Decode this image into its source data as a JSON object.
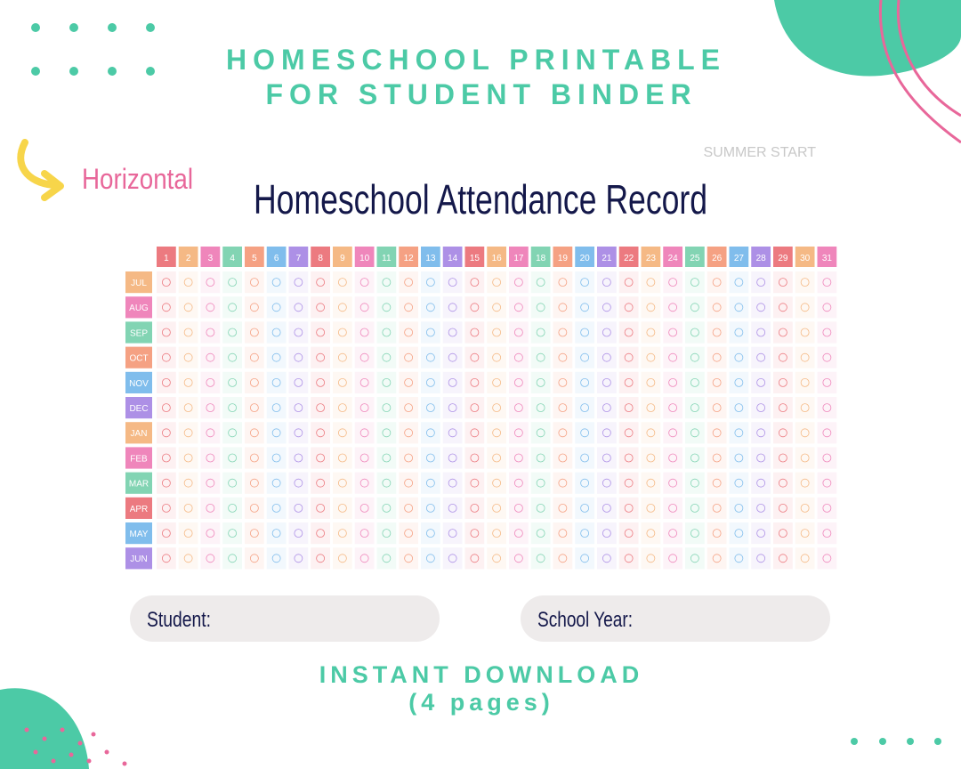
{
  "header": {
    "line1": "HOMESCHOOL PRINTABLE",
    "line2": "FOR STUDENT BINDER"
  },
  "orientation": "Horizontal",
  "variant": "SUMMER START",
  "sheet": {
    "title": "Homeschool Attendance Record",
    "days": [
      1,
      2,
      3,
      4,
      5,
      6,
      7,
      8,
      9,
      10,
      11,
      12,
      13,
      14,
      15,
      16,
      17,
      18,
      19,
      20,
      21,
      22,
      23,
      24,
      25,
      26,
      27,
      28,
      29,
      30,
      31
    ],
    "day_palette": [
      "#ec7a80",
      "#f5b985",
      "#ef86bb",
      "#82d4b3",
      "#f5a183",
      "#80bdec",
      "#ad90e6"
    ],
    "months": [
      "JUL",
      "AUG",
      "SEP",
      "OCT",
      "NOV",
      "DEC",
      "JAN",
      "FEB",
      "MAR",
      "APR",
      "MAY",
      "JUN"
    ],
    "month_colors": [
      "#f5b985",
      "#ef86bb",
      "#82d4b3",
      "#f5a183",
      "#80bdec",
      "#ad90e6",
      "#f5b985",
      "#ef86bb",
      "#82d4b3",
      "#ec7a80",
      "#80bdec",
      "#ad90e6"
    ],
    "fields": [
      "Student:",
      "School Year:"
    ]
  },
  "footer": {
    "line1": "INSTANT DOWNLOAD",
    "line2": "(4 pages)"
  }
}
